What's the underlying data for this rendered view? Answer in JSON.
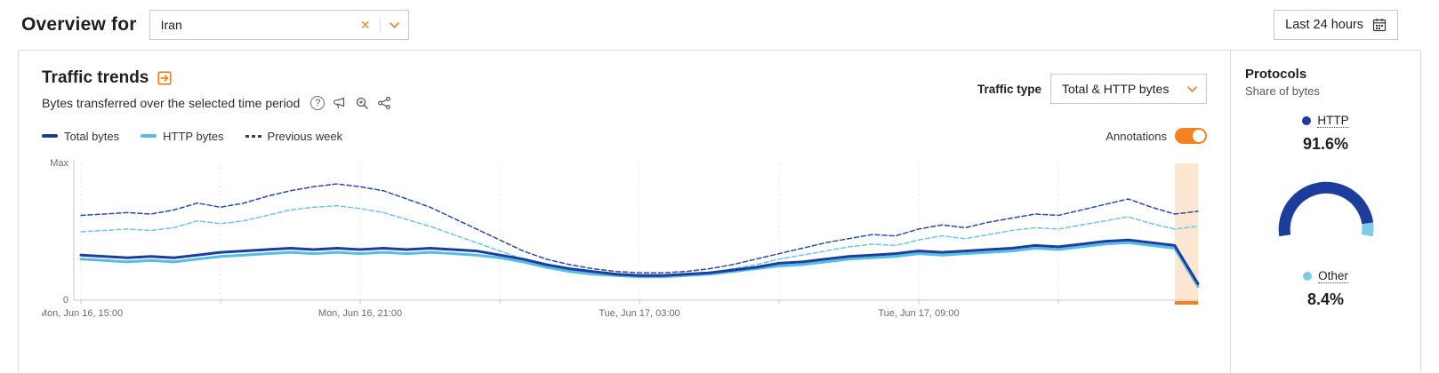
{
  "header": {
    "title": "Overview for",
    "location_selector": {
      "value": "Iran",
      "clear_icon": "✕"
    },
    "time_range_label": "Last 24 hours"
  },
  "traffic": {
    "title": "Traffic trends",
    "subtitle": "Bytes transferred over the selected time period",
    "traffic_type_label": "Traffic type",
    "traffic_type_value": "Total & HTTP bytes",
    "annotations_label": "Annotations",
    "annotations_on": true,
    "legend": [
      {
        "label": "Total bytes",
        "color": "#1d3d9c",
        "style": "solid"
      },
      {
        "label": "HTTP bytes",
        "color": "#53bde4",
        "style": "solid"
      },
      {
        "label": "Previous week",
        "color": "#3f3f3f",
        "style": "dashed"
      }
    ]
  },
  "chart_data": {
    "type": "line",
    "title": "Traffic trends — bytes transferred over the selected time period",
    "x_unit": "30-minute intervals, Mon Jun 16 15:00 → Tue Jun 17 15:00",
    "y_axis": {
      "top_label": "Max",
      "bottom_label": "0",
      "range": [
        0,
        100
      ],
      "note": "values normalized, Max = 100"
    },
    "x_tick_labels": [
      {
        "index": 0,
        "label": "Mon, Jun 16, 15:00"
      },
      {
        "index": 12,
        "label": "Mon, Jun 16, 21:00"
      },
      {
        "index": 24,
        "label": "Tue, Jun 17, 03:00"
      },
      {
        "index": 36,
        "label": "Tue, Jun 17, 09:00"
      }
    ],
    "gridline_indices": [
      0,
      6,
      12,
      18,
      24,
      30,
      36,
      42
    ],
    "annotation": {
      "start_index": 47,
      "end_index": 48,
      "band_color": "rgba(246,130,31,0.20)",
      "marker_color": "#f6821f"
    },
    "series": [
      {
        "name": "Previous week (Total bytes)",
        "color": "#2a4aa8",
        "dash": "5,3",
        "width": 1.5,
        "values": [
          62,
          63,
          64,
          63,
          66,
          71,
          68,
          71,
          76,
          80,
          83,
          85,
          83,
          80,
          74,
          68,
          60,
          52,
          44,
          36,
          30,
          26,
          23,
          21,
          20,
          20,
          21,
          23,
          26,
          30,
          34,
          38,
          42,
          45,
          48,
          47,
          52,
          55,
          53,
          57,
          60,
          63,
          62,
          66,
          70,
          74,
          68,
          63,
          65
        ]
      },
      {
        "name": "Previous week (HTTP bytes)",
        "color": "#6ec3e8",
        "dash": "5,3",
        "width": 1.5,
        "values": [
          50,
          51,
          52,
          51,
          53,
          58,
          56,
          58,
          62,
          66,
          68,
          69,
          67,
          64,
          59,
          54,
          48,
          42,
          36,
          30,
          25,
          22,
          20,
          18,
          17,
          17,
          18,
          20,
          23,
          26,
          30,
          33,
          36,
          39,
          41,
          40,
          44,
          47,
          45,
          48,
          51,
          53,
          52,
          55,
          58,
          61,
          56,
          52,
          54
        ]
      },
      {
        "name": "HTTP bytes",
        "color": "#53bde4",
        "dash": "",
        "width": 3,
        "values": [
          30,
          29,
          28,
          29,
          28,
          30,
          32,
          33,
          34,
          35,
          34,
          35,
          34,
          35,
          34,
          35,
          34,
          33,
          31,
          28,
          24,
          21,
          19,
          18,
          17,
          17,
          18,
          19,
          21,
          23,
          25,
          26,
          28,
          30,
          31,
          32,
          34,
          33,
          34,
          35,
          36,
          38,
          37,
          39,
          41,
          42,
          40,
          38,
          10
        ]
      },
      {
        "name": "Total bytes",
        "color": "#1d3d9c",
        "dash": "",
        "width": 3,
        "values": [
          33,
          32,
          31,
          32,
          31,
          33,
          35,
          36,
          37,
          38,
          37,
          38,
          37,
          38,
          37,
          38,
          37,
          36,
          33,
          30,
          26,
          23,
          21,
          19,
          18,
          18,
          19,
          20,
          22,
          24,
          27,
          28,
          30,
          32,
          33,
          34,
          36,
          35,
          36,
          37,
          38,
          40,
          39,
          41,
          43,
          44,
          42,
          40,
          12
        ]
      }
    ]
  },
  "protocols": {
    "title": "Protocols",
    "subtitle": "Share of bytes",
    "gauge": {
      "start_angle": 190,
      "total_sweep": 200
    },
    "items": [
      {
        "label": "HTTP",
        "value": "91.6%",
        "pct": 91.6,
        "color": "#1d3d9c"
      },
      {
        "label": "Other",
        "value": "8.4%",
        "pct": 8.4,
        "color": "#7ecbe8"
      }
    ]
  },
  "colors": {
    "accent": "#f6821f",
    "border": "#d9d9d9",
    "text": "#1f1f1f",
    "muted": "#595959"
  }
}
